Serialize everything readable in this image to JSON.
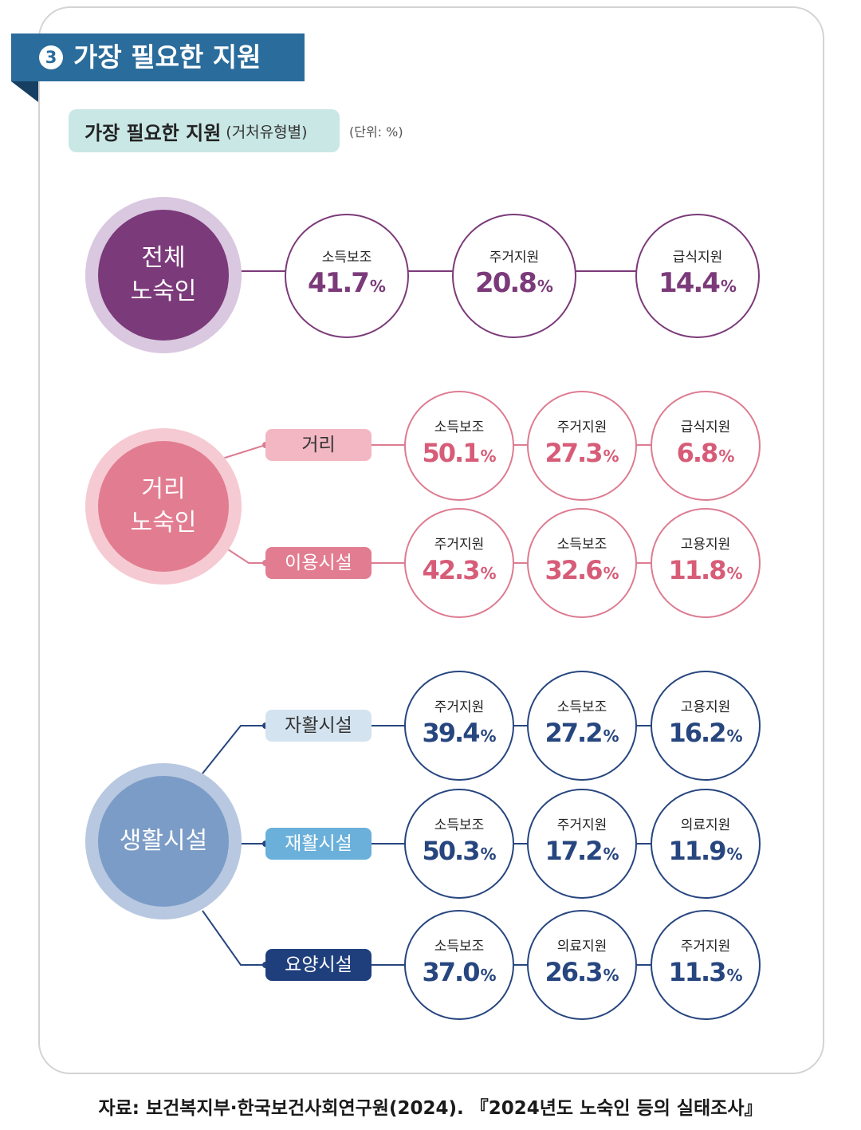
{
  "header": {
    "badge_number": "3",
    "title": "가장 필요한 지원"
  },
  "subtitle": {
    "title": "가장 필요한 지원",
    "qualifier": "(거처유형별)",
    "unit_note": "(단위: %)"
  },
  "unit": "%",
  "colors": {
    "header_banner": "#2a6c9b",
    "subtitle_pill": "#c8e7e5",
    "all_homeless": "#7b3a7a",
    "street_homeless": "#e27d91",
    "residential_facility": "#7b9cc6",
    "facility_navy": "#27467f"
  },
  "all_homeless": {
    "name_line1": "전체",
    "name_line2": "노숙인",
    "items": [
      {
        "label": "소득보조",
        "value": "41.7"
      },
      {
        "label": "주거지원",
        "value": "20.8"
      },
      {
        "label": "급식지원",
        "value": "14.4"
      }
    ]
  },
  "street_homeless": {
    "name_line1": "거리",
    "name_line2": "노숙인",
    "rows": [
      {
        "category": "거리",
        "items": [
          {
            "label": "소득보조",
            "value": "50.1"
          },
          {
            "label": "주거지원",
            "value": "27.3"
          },
          {
            "label": "급식지원",
            "value": "6.8"
          }
        ]
      },
      {
        "category": "이용시설",
        "items": [
          {
            "label": "주거지원",
            "value": "42.3"
          },
          {
            "label": "소득보조",
            "value": "32.6"
          },
          {
            "label": "고용지원",
            "value": "11.8"
          }
        ]
      }
    ]
  },
  "residential_facility": {
    "name": "생활시설",
    "rows": [
      {
        "category": "자활시설",
        "items": [
          {
            "label": "주거지원",
            "value": "39.4"
          },
          {
            "label": "소득보조",
            "value": "27.2"
          },
          {
            "label": "고용지원",
            "value": "16.2"
          }
        ]
      },
      {
        "category": "재활시설",
        "items": [
          {
            "label": "소득보조",
            "value": "50.3"
          },
          {
            "label": "주거지원",
            "value": "17.2"
          },
          {
            "label": "의료지원",
            "value": "11.9"
          }
        ]
      },
      {
        "category": "요양시설",
        "items": [
          {
            "label": "소득보조",
            "value": "37.0"
          },
          {
            "label": "의료지원",
            "value": "26.3"
          },
          {
            "label": "주거지원",
            "value": "11.3"
          }
        ]
      }
    ]
  },
  "source": "자료: 보건복지부·한국보건사회연구원(2024). 『2024년도 노숙인 등의 실태조사』"
}
